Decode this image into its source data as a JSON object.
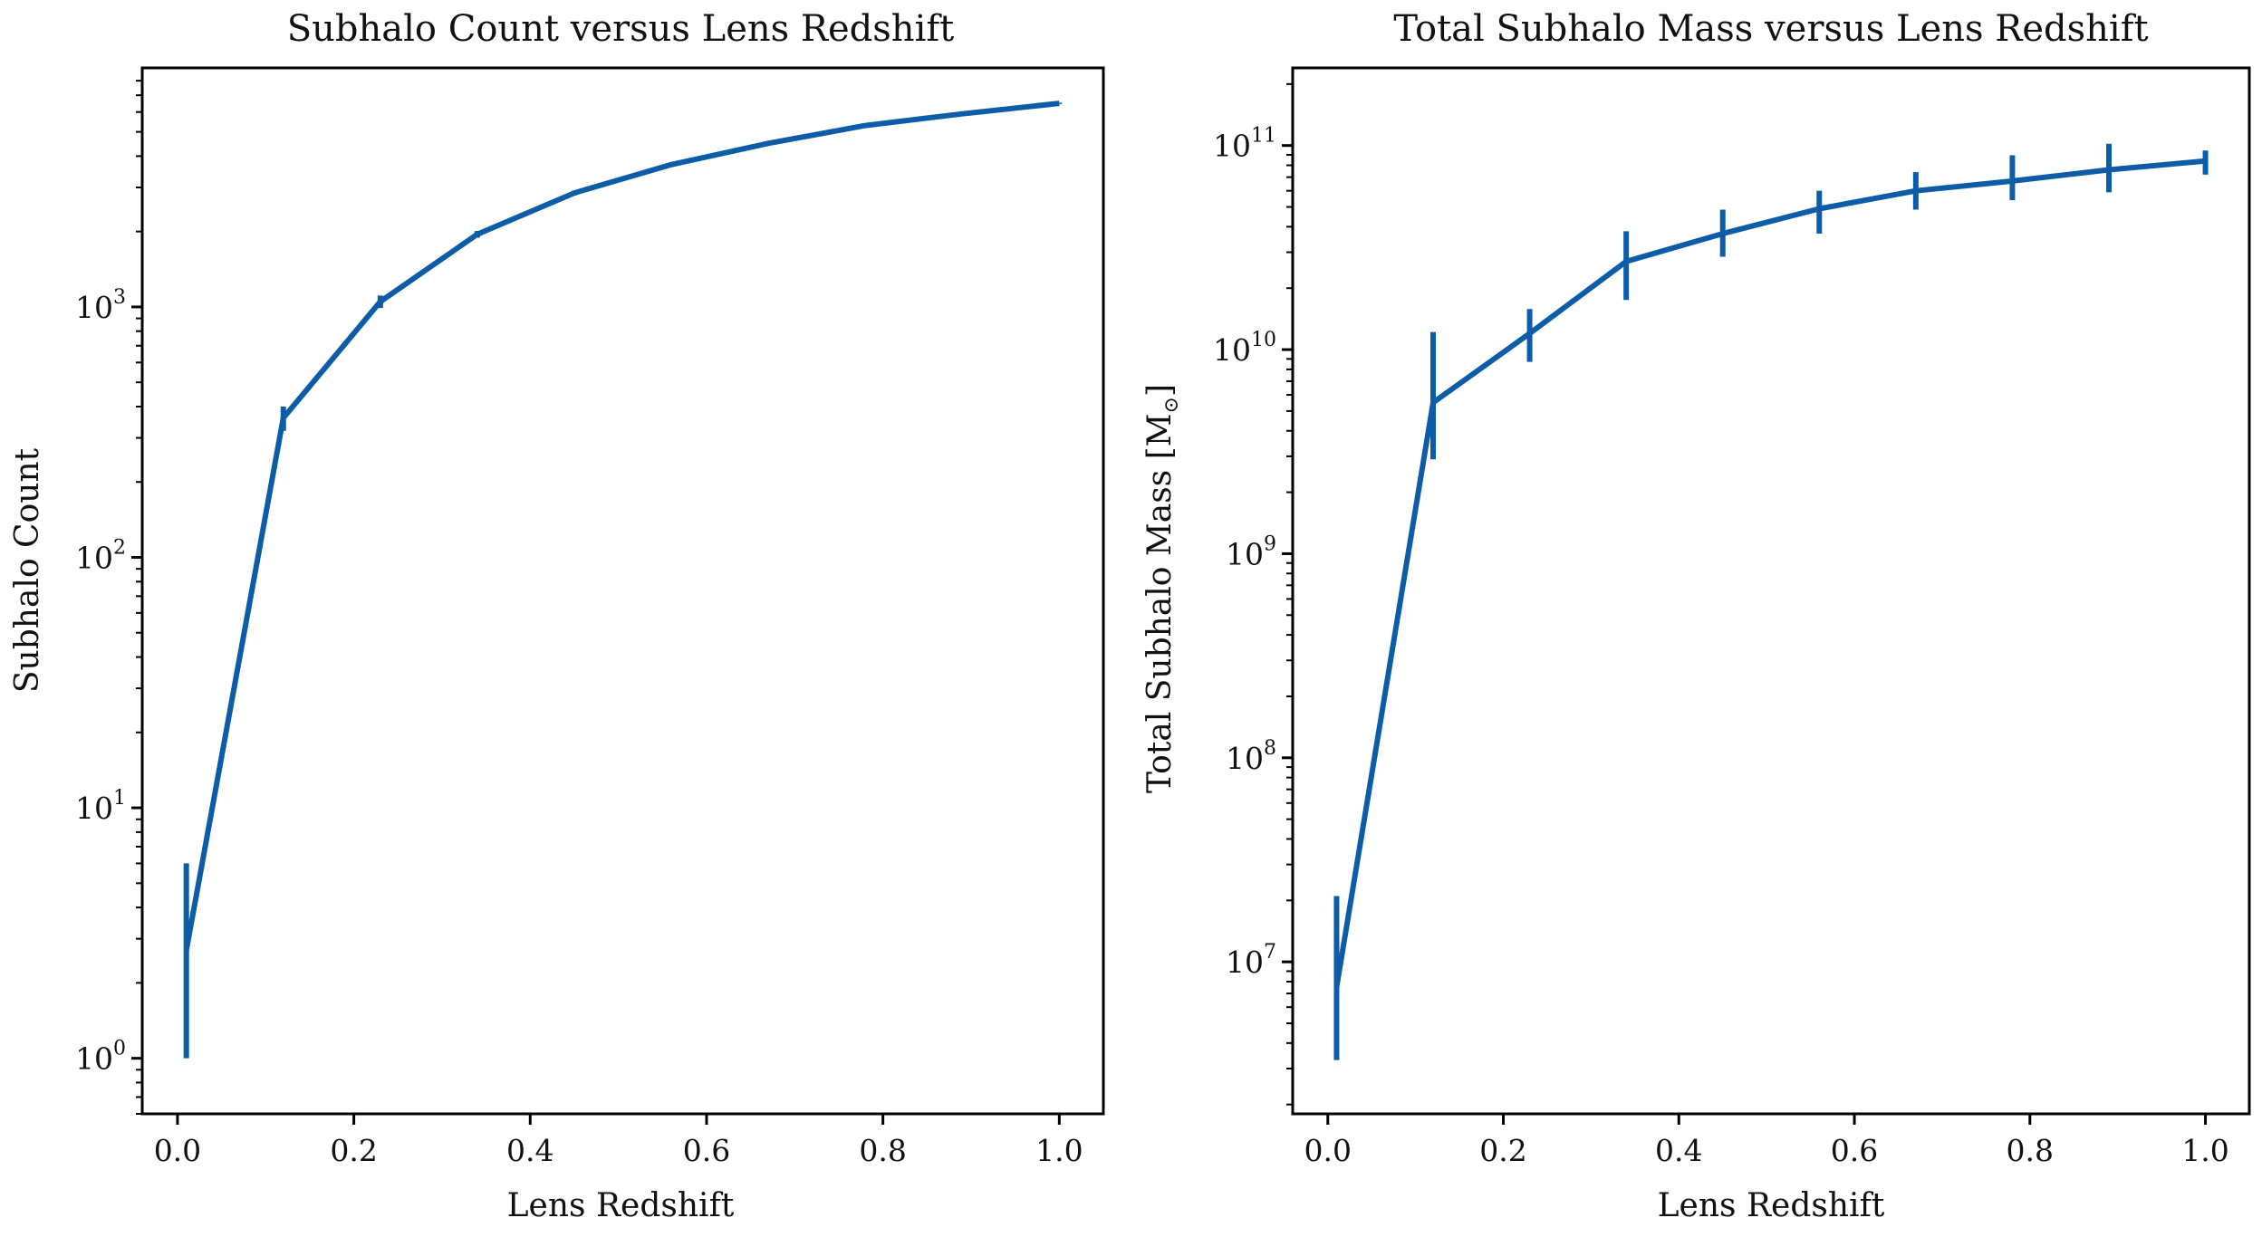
{
  "colors": {
    "series": "#0d5ca8",
    "axis": "#000000",
    "background": "#ffffff"
  },
  "chart_data": [
    {
      "type": "line",
      "title": "Subhalo Count versus Lens Redshift",
      "xlabel": "Lens Redshift",
      "ylabel": "Subhalo Count",
      "yscale": "log",
      "grid": false,
      "xlim": [
        -0.04,
        1.05
      ],
      "ylim": [
        0.6,
        9000
      ],
      "x_ticks": [
        "0.0",
        "0.2",
        "0.4",
        "0.6",
        "0.8",
        "1.0"
      ],
      "y_ticks": [
        {
          "base": "10",
          "exp": "0",
          "value": 1
        },
        {
          "base": "10",
          "exp": "1",
          "value": 10
        },
        {
          "base": "10",
          "exp": "2",
          "value": 100
        },
        {
          "base": "10",
          "exp": "3",
          "value": 1000
        }
      ],
      "series": [
        {
          "x": [
            0.01,
            0.12,
            0.23,
            0.34,
            0.45,
            0.56,
            0.67,
            0.78,
            0.89,
            1.0
          ],
          "y": [
            2.7,
            360,
            1050,
            1950,
            2850,
            3700,
            4500,
            5300,
            5900,
            6500
          ],
          "y_err_low": [
            1.0,
            320,
            990,
            1890,
            2790,
            3640,
            4450,
            5260,
            5860,
            6460
          ],
          "y_err_high": [
            6.0,
            400,
            1110,
            2010,
            2910,
            3760,
            4550,
            5340,
            5940,
            6540
          ]
        }
      ]
    },
    {
      "type": "line",
      "title": "Total Subhalo Mass versus Lens Redshift",
      "xlabel": "Lens Redshift",
      "ylabel": "Total Subhalo Mass [M",
      "ylabel_unit_symbol": "⊙",
      "ylabel_close": "]",
      "yscale": "log",
      "grid": false,
      "xlim": [
        -0.04,
        1.05
      ],
      "ylim": [
        1800000.0,
        240000000000.0
      ],
      "x_ticks": [
        "0.0",
        "0.2",
        "0.4",
        "0.6",
        "0.8",
        "1.0"
      ],
      "y_ticks": [
        {
          "base": "10",
          "exp": "7",
          "value": 10000000.0
        },
        {
          "base": "10",
          "exp": "8",
          "value": 100000000.0
        },
        {
          "base": "10",
          "exp": "9",
          "value": 1000000000.0
        },
        {
          "base": "10",
          "exp": "10",
          "value": 10000000000.0
        },
        {
          "base": "10",
          "exp": "11",
          "value": 100000000000.0
        }
      ],
      "series": [
        {
          "x": [
            0.01,
            0.12,
            0.23,
            0.34,
            0.45,
            0.56,
            0.67,
            0.78,
            0.89,
            1.0
          ],
          "y": [
            7500000.0,
            5500000000.0,
            12000000000.0,
            27000000000.0,
            37000000000.0,
            49000000000.0,
            60000000000.0,
            67000000000.0,
            76000000000.0,
            84000000000.0
          ],
          "y_err_low": [
            3300000.0,
            2900000000.0,
            8700000000.0,
            17500000000.0,
            28500000000.0,
            37000000000.0,
            48500000000.0,
            54000000000.0,
            59000000000.0,
            72000000000.0
          ],
          "y_err_high": [
            21000000.0,
            12200000000.0,
            15800000000.0,
            38000000000.0,
            48500000000.0,
            60000000000.0,
            74000000000.0,
            89500000000.0,
            102000000000.0,
            94500000000.0
          ]
        }
      ]
    }
  ]
}
